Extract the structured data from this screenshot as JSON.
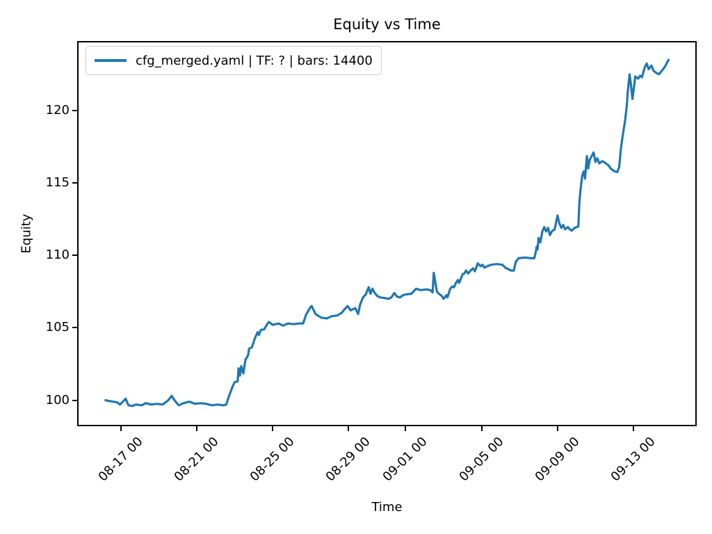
{
  "chart_data": {
    "type": "line",
    "title": "Equity vs Time",
    "xlabel": "Time",
    "ylabel": "Equity",
    "legend": [
      "cfg_merged.yaml | TF: ? | bars: 14400"
    ],
    "legend_location": "upper left",
    "grid": false,
    "line_color": "#1f77b4",
    "axis_color": "#000000",
    "x_unit": "days, 0 = 08-16 00:00",
    "xlim": [
      -1.23,
      31.26
    ],
    "ylim": [
      98.3,
      124.7
    ],
    "x_ticks": [
      {
        "pos": 1,
        "label": "08-17 00"
      },
      {
        "pos": 5,
        "label": "08-21 00"
      },
      {
        "pos": 9,
        "label": "08-25 00"
      },
      {
        "pos": 13,
        "label": "08-29 00"
      },
      {
        "pos": 16,
        "label": "09-01 00"
      },
      {
        "pos": 20,
        "label": "09-05 00"
      },
      {
        "pos": 24,
        "label": "09-09 00"
      },
      {
        "pos": 28,
        "label": "09-13 00"
      }
    ],
    "y_ticks": [
      {
        "pos": 100,
        "label": "100"
      },
      {
        "pos": 105,
        "label": "105"
      },
      {
        "pos": 110,
        "label": "110"
      },
      {
        "pos": 115,
        "label": "115"
      },
      {
        "pos": 120,
        "label": "120"
      }
    ],
    "series": [
      {
        "name": "cfg_merged.yaml | TF: ? | bars: 14400",
        "points": [
          [
            0.19,
            100.0
          ],
          [
            0.35,
            99.95
          ],
          [
            0.6,
            99.9
          ],
          [
            0.8,
            99.85
          ],
          [
            0.95,
            99.7
          ],
          [
            1.1,
            99.9
          ],
          [
            1.25,
            100.1
          ],
          [
            1.4,
            99.65
          ],
          [
            1.6,
            99.6
          ],
          [
            1.8,
            99.7
          ],
          [
            2.1,
            99.65
          ],
          [
            2.3,
            99.8
          ],
          [
            2.6,
            99.7
          ],
          [
            2.9,
            99.75
          ],
          [
            3.2,
            99.7
          ],
          [
            3.5,
            100.0
          ],
          [
            3.67,
            100.3
          ],
          [
            3.85,
            99.95
          ],
          [
            4.05,
            99.65
          ],
          [
            4.3,
            99.8
          ],
          [
            4.6,
            99.9
          ],
          [
            4.9,
            99.75
          ],
          [
            5.2,
            99.8
          ],
          [
            5.5,
            99.75
          ],
          [
            5.8,
            99.65
          ],
          [
            6.1,
            99.7
          ],
          [
            6.4,
            99.65
          ],
          [
            6.55,
            99.7
          ],
          [
            6.7,
            100.3
          ],
          [
            6.9,
            101.0
          ],
          [
            7.0,
            101.25
          ],
          [
            7.15,
            101.3
          ],
          [
            7.2,
            102.2
          ],
          [
            7.27,
            101.7
          ],
          [
            7.34,
            102.35
          ],
          [
            7.45,
            101.85
          ],
          [
            7.56,
            102.8
          ],
          [
            7.7,
            103.1
          ],
          [
            7.75,
            103.55
          ],
          [
            7.9,
            103.65
          ],
          [
            8.05,
            104.25
          ],
          [
            8.2,
            104.7
          ],
          [
            8.27,
            104.5
          ],
          [
            8.37,
            104.85
          ],
          [
            8.55,
            104.9
          ],
          [
            8.73,
            105.3
          ],
          [
            8.8,
            105.4
          ],
          [
            9.0,
            105.2
          ],
          [
            9.3,
            105.3
          ],
          [
            9.55,
            105.15
          ],
          [
            9.8,
            105.3
          ],
          [
            10.1,
            105.25
          ],
          [
            10.4,
            105.3
          ],
          [
            10.6,
            105.3
          ],
          [
            10.75,
            105.9
          ],
          [
            11.0,
            106.45
          ],
          [
            11.05,
            106.5
          ],
          [
            11.25,
            105.95
          ],
          [
            11.55,
            105.7
          ],
          [
            11.85,
            105.65
          ],
          [
            12.1,
            105.8
          ],
          [
            12.4,
            105.85
          ],
          [
            12.65,
            106.05
          ],
          [
            12.8,
            106.3
          ],
          [
            12.95,
            106.5
          ],
          [
            13.1,
            106.2
          ],
          [
            13.25,
            106.3
          ],
          [
            13.35,
            106.35
          ],
          [
            13.5,
            105.95
          ],
          [
            13.6,
            106.6
          ],
          [
            13.75,
            107.1
          ],
          [
            13.9,
            107.3
          ],
          [
            14.05,
            107.8
          ],
          [
            14.15,
            107.35
          ],
          [
            14.25,
            107.7
          ],
          [
            14.35,
            107.45
          ],
          [
            14.5,
            107.2
          ],
          [
            14.65,
            107.1
          ],
          [
            14.9,
            107.05
          ],
          [
            15.1,
            107.0
          ],
          [
            15.25,
            107.1
          ],
          [
            15.4,
            107.4
          ],
          [
            15.55,
            107.15
          ],
          [
            15.7,
            107.1
          ],
          [
            15.87,
            107.25
          ],
          [
            16.0,
            107.3
          ],
          [
            16.3,
            107.35
          ],
          [
            16.55,
            107.7
          ],
          [
            16.8,
            107.6
          ],
          [
            17.1,
            107.65
          ],
          [
            17.3,
            107.6
          ],
          [
            17.42,
            107.45
          ],
          [
            17.48,
            108.8
          ],
          [
            17.6,
            107.85
          ],
          [
            17.65,
            107.5
          ],
          [
            17.75,
            107.35
          ],
          [
            17.9,
            107.2
          ],
          [
            18.0,
            107.0
          ],
          [
            18.15,
            107.25
          ],
          [
            18.2,
            107.1
          ],
          [
            18.35,
            107.7
          ],
          [
            18.45,
            107.85
          ],
          [
            18.55,
            107.8
          ],
          [
            18.65,
            108.1
          ],
          [
            18.75,
            108.3
          ],
          [
            18.82,
            108.1
          ],
          [
            19.0,
            108.7
          ],
          [
            19.1,
            108.75
          ],
          [
            19.18,
            108.95
          ],
          [
            19.3,
            108.75
          ],
          [
            19.45,
            109.0
          ],
          [
            19.55,
            109.1
          ],
          [
            19.65,
            108.9
          ],
          [
            19.8,
            109.45
          ],
          [
            19.95,
            109.25
          ],
          [
            20.05,
            109.35
          ],
          [
            20.15,
            109.15
          ],
          [
            20.3,
            109.25
          ],
          [
            20.5,
            109.35
          ],
          [
            20.8,
            109.4
          ],
          [
            21.1,
            109.35
          ],
          [
            21.25,
            109.15
          ],
          [
            21.4,
            109.05
          ],
          [
            21.55,
            108.95
          ],
          [
            21.7,
            108.95
          ],
          [
            21.8,
            109.55
          ],
          [
            21.95,
            109.8
          ],
          [
            22.3,
            109.85
          ],
          [
            22.6,
            109.8
          ],
          [
            22.78,
            109.8
          ],
          [
            22.85,
            110.2
          ],
          [
            22.9,
            110.6
          ],
          [
            22.95,
            110.4
          ],
          [
            23.0,
            111.2
          ],
          [
            23.1,
            110.9
          ],
          [
            23.2,
            111.65
          ],
          [
            23.3,
            111.95
          ],
          [
            23.4,
            111.65
          ],
          [
            23.5,
            111.9
          ],
          [
            23.6,
            111.4
          ],
          [
            23.7,
            111.65
          ],
          [
            23.85,
            111.8
          ],
          [
            24.0,
            112.75
          ],
          [
            24.1,
            112.2
          ],
          [
            24.2,
            111.9
          ],
          [
            24.3,
            112.1
          ],
          [
            24.4,
            111.8
          ],
          [
            24.55,
            111.95
          ],
          [
            24.65,
            111.8
          ],
          [
            24.75,
            111.7
          ],
          [
            24.9,
            111.9
          ],
          [
            25.1,
            112.0
          ],
          [
            25.15,
            113.6
          ],
          [
            25.2,
            114.4
          ],
          [
            25.3,
            115.5
          ],
          [
            25.38,
            115.8
          ],
          [
            25.45,
            115.3
          ],
          [
            25.5,
            116.1
          ],
          [
            25.55,
            116.85
          ],
          [
            25.62,
            116.0
          ],
          [
            25.7,
            116.6
          ],
          [
            25.9,
            117.1
          ],
          [
            26.0,
            116.45
          ],
          [
            26.1,
            116.7
          ],
          [
            26.2,
            116.35
          ],
          [
            26.35,
            116.5
          ],
          [
            26.45,
            116.45
          ],
          [
            26.55,
            116.35
          ],
          [
            26.7,
            116.2
          ],
          [
            26.8,
            116.0
          ],
          [
            27.0,
            115.8
          ],
          [
            27.15,
            115.75
          ],
          [
            27.25,
            116.1
          ],
          [
            27.35,
            117.5
          ],
          [
            27.45,
            118.4
          ],
          [
            27.55,
            119.2
          ],
          [
            27.65,
            120.3
          ],
          [
            27.7,
            121.3
          ],
          [
            27.75,
            121.9
          ],
          [
            27.8,
            122.5
          ],
          [
            27.85,
            122.0
          ],
          [
            27.95,
            120.8
          ],
          [
            28.1,
            122.35
          ],
          [
            28.25,
            122.2
          ],
          [
            28.35,
            122.4
          ],
          [
            28.45,
            122.3
          ],
          [
            28.6,
            123.0
          ],
          [
            28.7,
            123.25
          ],
          [
            28.8,
            122.85
          ],
          [
            28.95,
            123.1
          ],
          [
            29.05,
            122.75
          ],
          [
            29.2,
            122.6
          ],
          [
            29.35,
            122.5
          ],
          [
            29.5,
            122.75
          ],
          [
            29.65,
            123.0
          ],
          [
            29.85,
            123.5
          ]
        ]
      }
    ]
  }
}
